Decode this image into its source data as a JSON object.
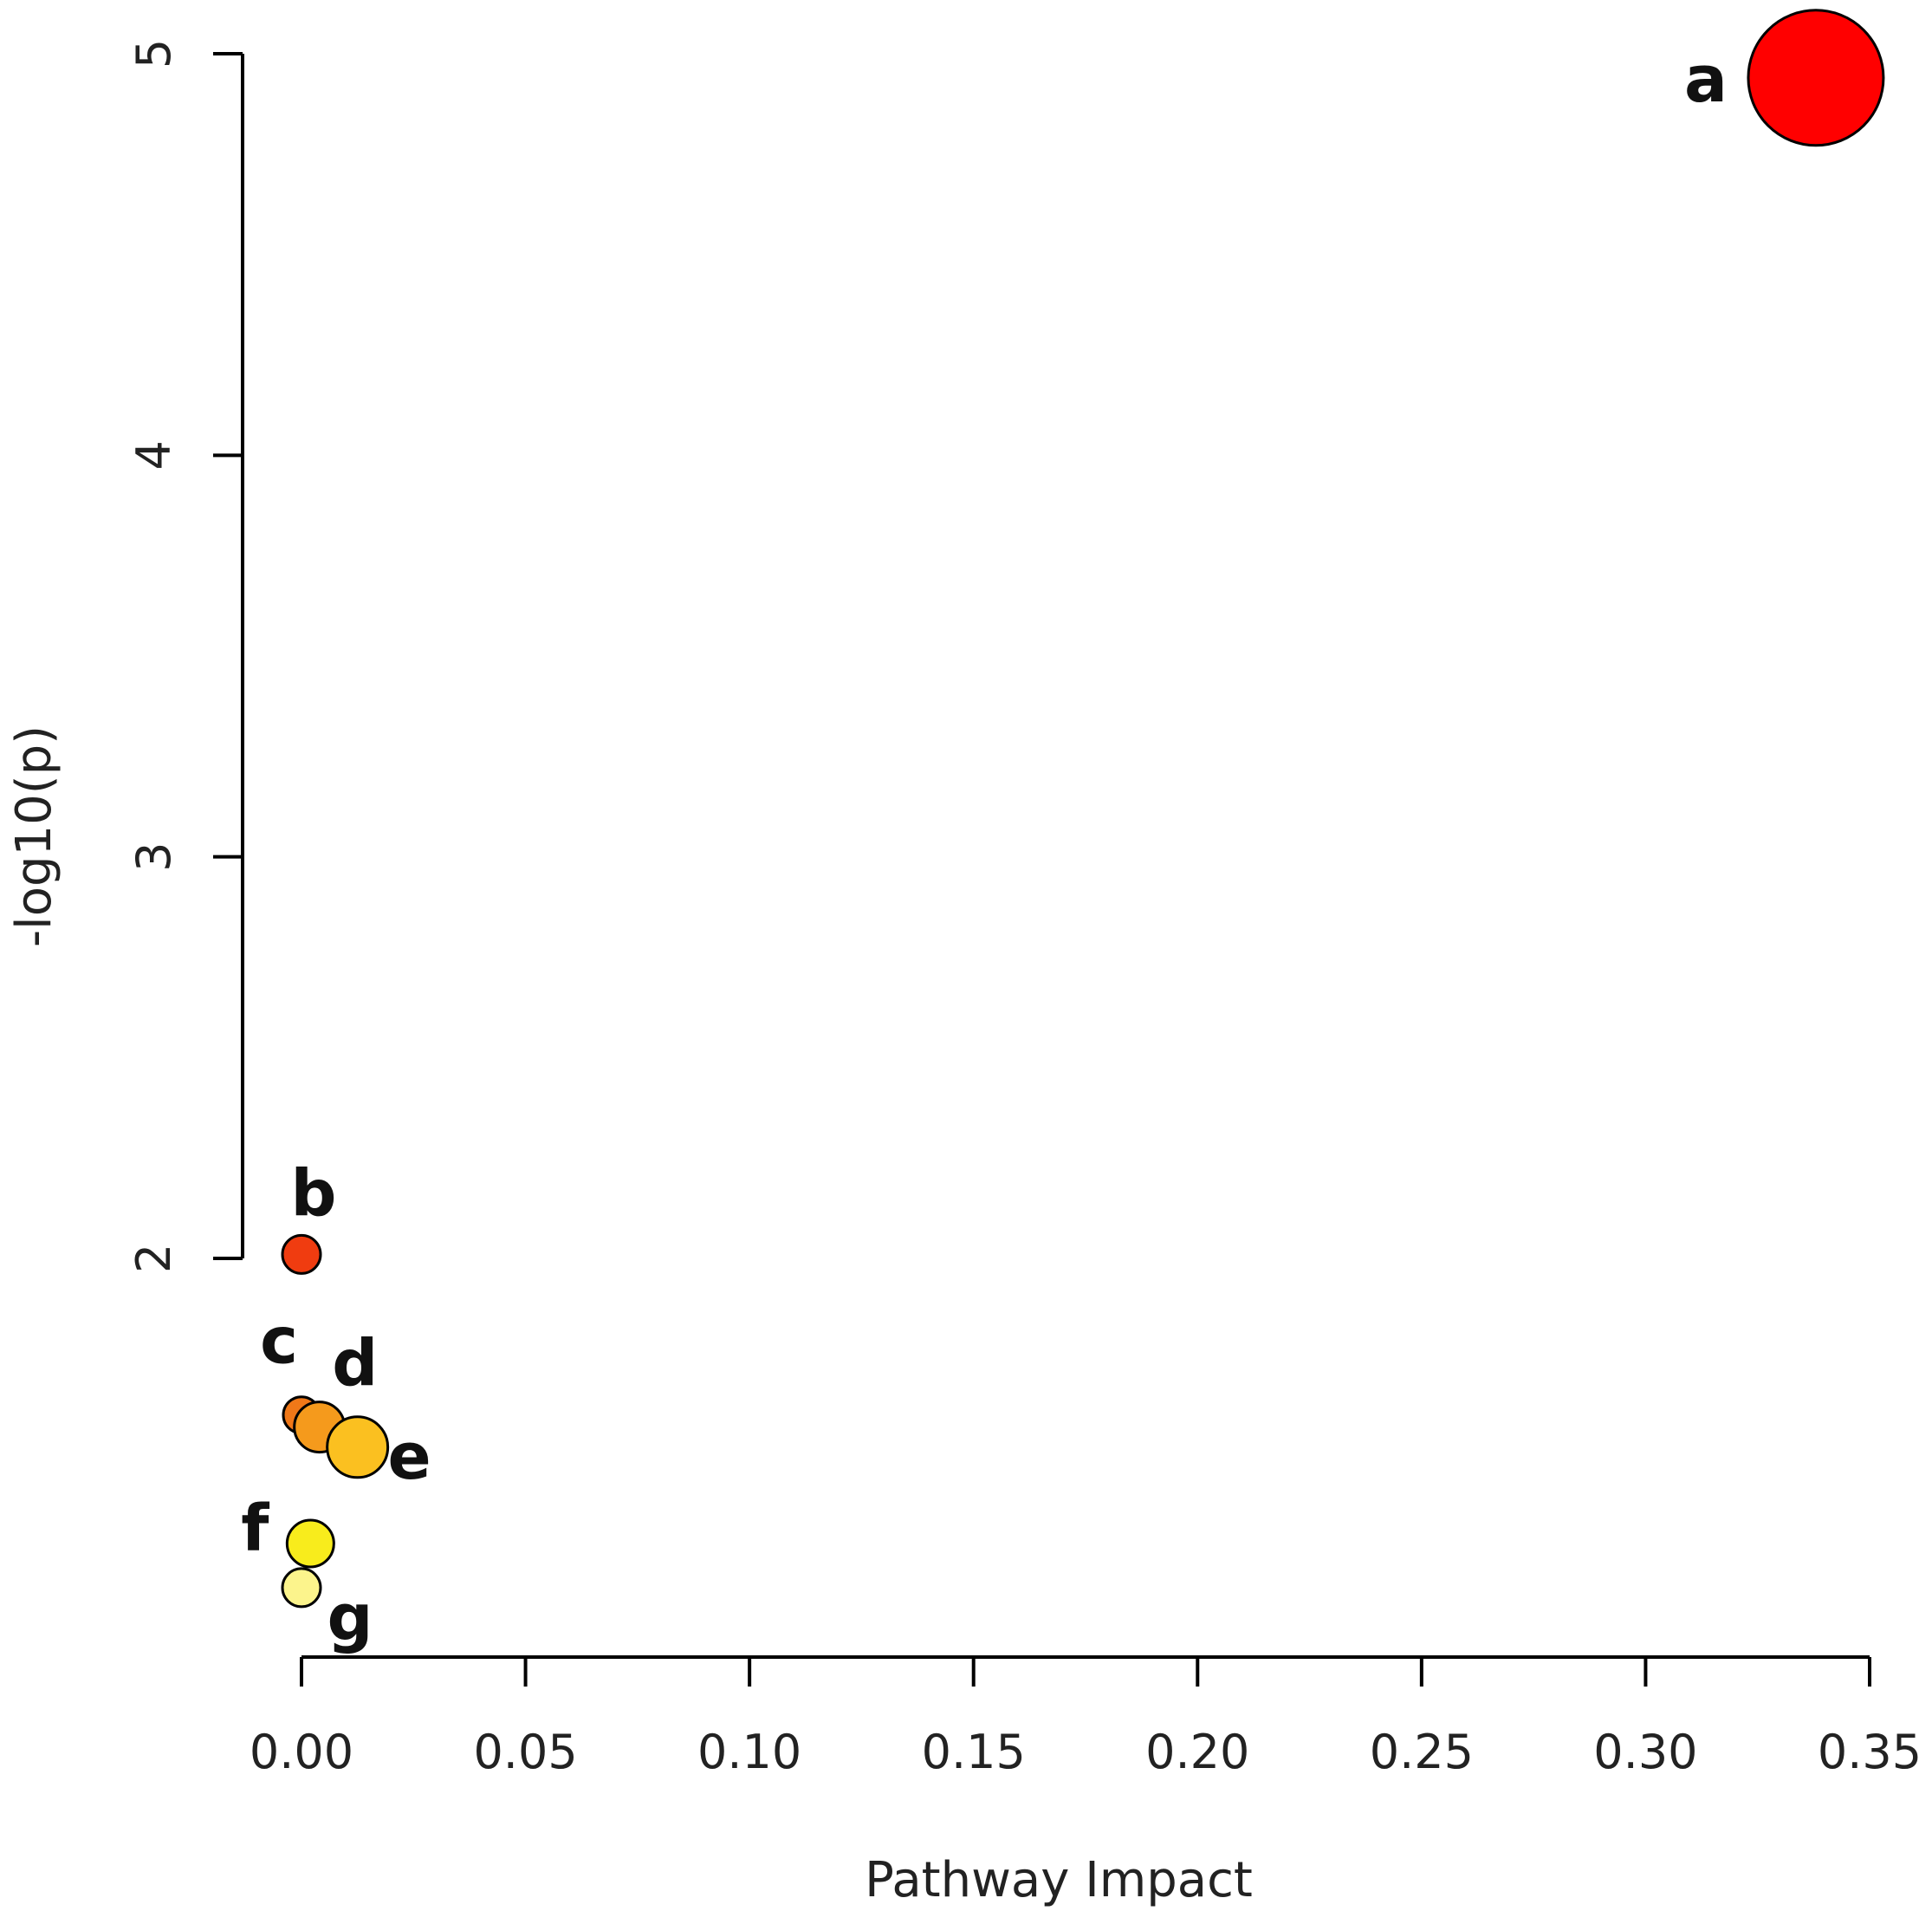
{
  "chart_data": {
    "type": "scatter",
    "xlabel": "Pathway Impact",
    "ylabel": "-log10(p)",
    "xlim": [
      0.0,
      0.35
    ],
    "ylim": [
      1.0,
      5.0
    ],
    "x_ticks": [
      "0.00",
      "0.05",
      "0.10",
      "0.15",
      "0.20",
      "0.25",
      "0.30",
      "0.35"
    ],
    "y_ticks": [
      "2",
      "3",
      "4",
      "5"
    ],
    "grid": false,
    "points": [
      {
        "label": "a",
        "x": 0.338,
        "y": 4.94,
        "color": "#ff0000"
      },
      {
        "label": "b",
        "x": 0.0,
        "y": 2.01,
        "color": "#f03c10"
      },
      {
        "label": "c",
        "x": 0.0,
        "y": 1.61,
        "color": "#f07818"
      },
      {
        "label": "d",
        "x": 0.004,
        "y": 1.58,
        "color": "#f59a1c"
      },
      {
        "label": "e",
        "x": 0.0125,
        "y": 1.53,
        "color": "#fbc020"
      },
      {
        "label": "f",
        "x": 0.002,
        "y": 1.29,
        "color": "#f8ec1c"
      },
      {
        "label": "g",
        "x": 0.0,
        "y": 1.18,
        "color": "#fcf48c"
      }
    ]
  }
}
